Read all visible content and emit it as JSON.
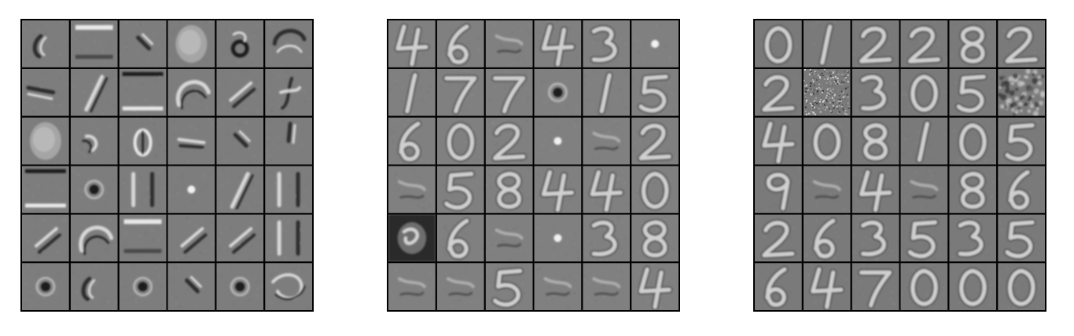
{
  "figure": {
    "panels": [
      {
        "id": "panel-0",
        "grid_rows": 6,
        "grid_cols": 6,
        "background_gray": "#7d7d7d",
        "filters": [
          [
            "curve-left",
            "bar-top",
            "diag-short",
            "blob-bright",
            "ring-dark",
            "arc-top"
          ],
          [
            "bar-mid",
            "diag-long",
            "bars-top-bottom",
            "arc-big",
            "diag-pair",
            "curl"
          ],
          [
            "blob-bright",
            "arc-small",
            "loop",
            "dash",
            "diag-short",
            "vert-short"
          ],
          [
            "bars-top-bottom",
            "dot-dark",
            "vert-pair",
            "dot-bright",
            "diag-long",
            "vert-pair"
          ],
          [
            "diag-pair",
            "arc-big",
            "bar-top",
            "diag-pair",
            "diag-pair",
            "vert-pair"
          ],
          [
            "dot-dark",
            "curve-left",
            "dot-dark",
            "diag-short",
            "dot-dark",
            "swirl"
          ]
        ]
      },
      {
        "id": "panel-1",
        "grid_rows": 6,
        "grid_cols": 6,
        "background_gray": "#808080",
        "filters": [
          [
            "digit-4",
            "digit-6",
            "faint",
            "digit-4",
            "digit-3",
            "dot-bright"
          ],
          [
            "digit-1",
            "digit-7",
            "digit-7",
            "dot-dark",
            "digit-1",
            "digit-5"
          ],
          [
            "digit-6",
            "digit-0",
            "digit-2",
            "dot-bright",
            "faint",
            "digit-2"
          ],
          [
            "faint",
            "digit-5",
            "digit-8",
            "digit-4",
            "digit-4",
            "digit-0"
          ],
          [
            "dark-block",
            "digit-6",
            "faint",
            "dot-bright",
            "digit-3",
            "digit-8"
          ],
          [
            "faint",
            "faint",
            "digit-5",
            "faint",
            "faint",
            "digit-4"
          ]
        ]
      },
      {
        "id": "panel-2",
        "grid_rows": 6,
        "grid_cols": 6,
        "background_gray": "#7a7a7a",
        "filters": [
          [
            "digit-0",
            "digit-1",
            "digit-2",
            "digit-2",
            "digit-8",
            "digit-2"
          ],
          [
            "digit-2",
            "noise",
            "digit-3",
            "digit-0",
            "digit-5",
            "noise-blob"
          ],
          [
            "digit-4",
            "digit-0",
            "digit-8",
            "digit-1",
            "digit-0",
            "digit-5"
          ],
          [
            "digit-9",
            "faint",
            "digit-4",
            "faint",
            "digit-8",
            "digit-6"
          ],
          [
            "digit-2",
            "digit-6",
            "digit-3",
            "digit-5",
            "digit-3",
            "digit-5"
          ],
          [
            "digit-6",
            "digit-4",
            "digit-7",
            "digit-0",
            "digit-0",
            "digit-0"
          ]
        ]
      }
    ]
  }
}
